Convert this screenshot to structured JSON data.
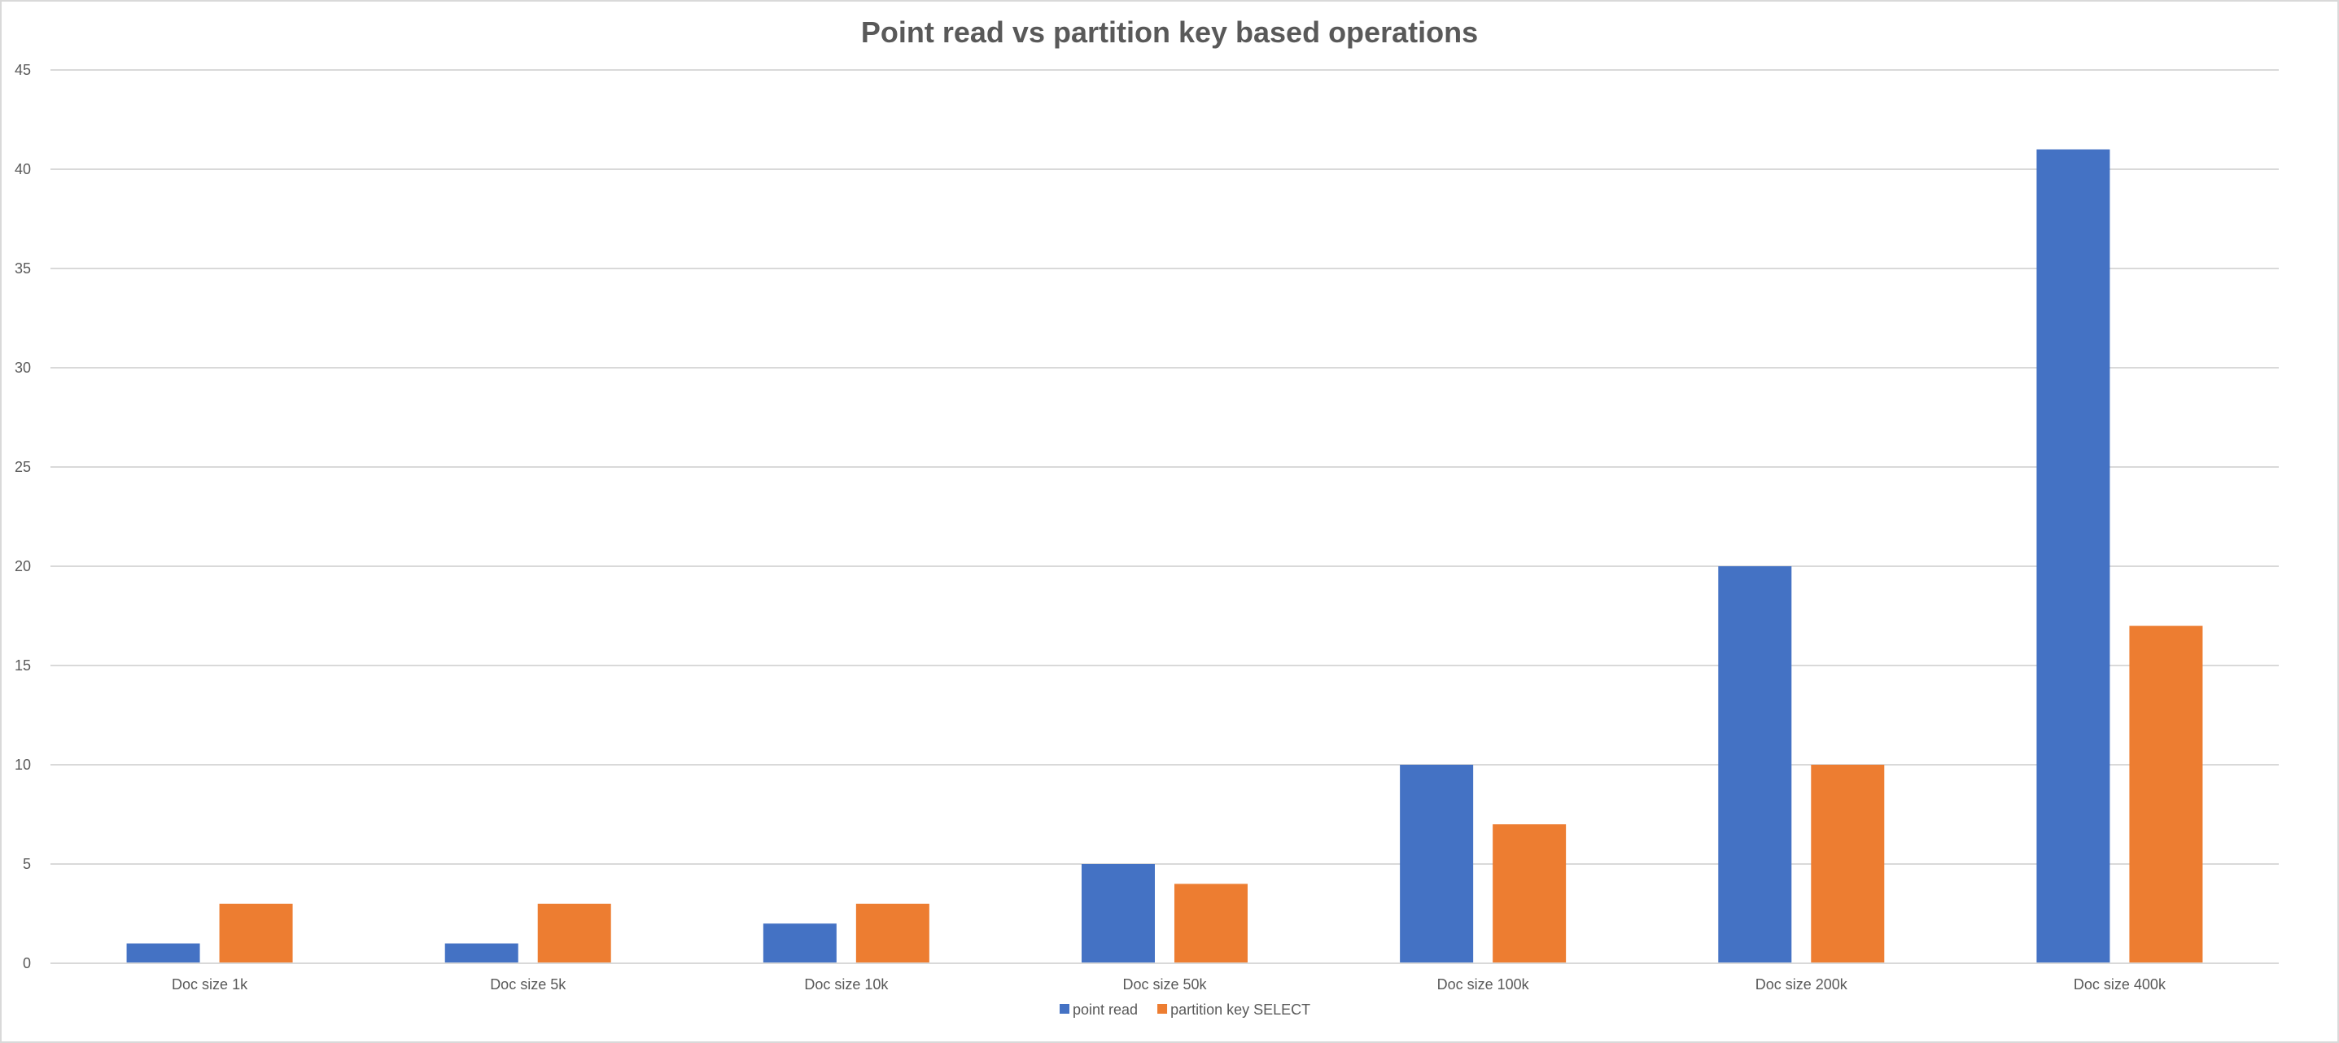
{
  "chart_data": {
    "type": "bar",
    "title": "Point read vs partition key based operations",
    "xlabel": "",
    "ylabel": "",
    "categories": [
      "Doc size 1k",
      "Doc size 5k",
      "Doc size 10k",
      "Doc size 50k",
      "Doc size 100k",
      "Doc size 200k",
      "Doc size 400k"
    ],
    "series": [
      {
        "name": "point read",
        "color": "#4472C4",
        "values": [
          1,
          1,
          2,
          5,
          10,
          20,
          41
        ]
      },
      {
        "name": "partition key SELECT",
        "color": "#ED7D31",
        "values": [
          3,
          3,
          3,
          4,
          7,
          10,
          17
        ]
      }
    ],
    "ylim": [
      0,
      45
    ],
    "yticks": [
      "0",
      "5",
      "10",
      "15",
      "20",
      "25",
      "30",
      "35",
      "40",
      "45"
    ],
    "grid": true,
    "legend_position": "bottom"
  }
}
